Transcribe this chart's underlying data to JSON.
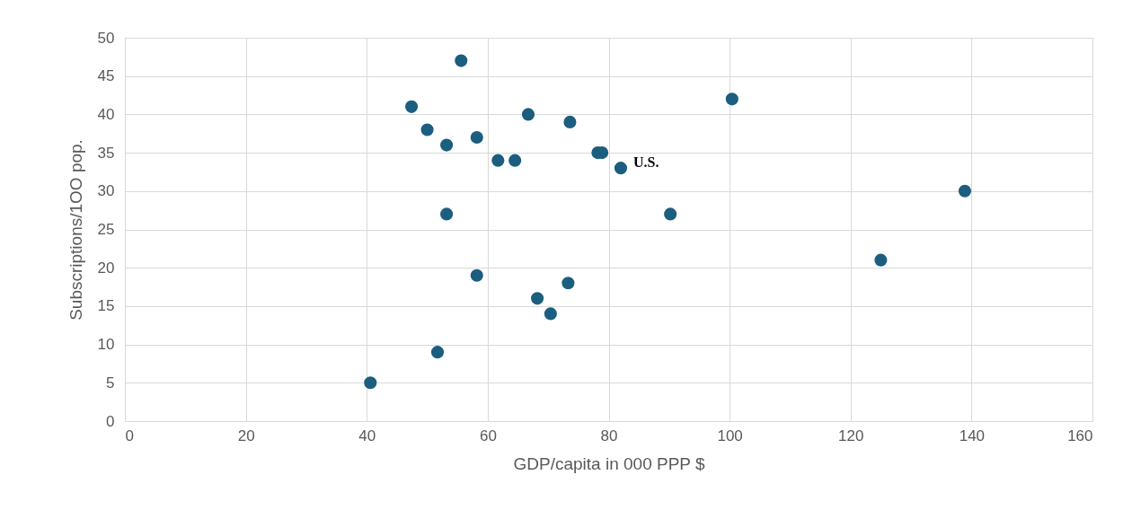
{
  "chart_data": {
    "type": "scatter",
    "xlabel": "GDP/capita in 000 PPP $",
    "ylabel": "Subscriptions/1OO pop.",
    "x": [
      40.6,
      51.7,
      53.2,
      58.2,
      68.2,
      70.4,
      73.3,
      55.6,
      47.4,
      50.0,
      53.2,
      58.2,
      61.7,
      64.5,
      66.7,
      73.6,
      78.2,
      78.9,
      82.0,
      90.2,
      100.4,
      125,
      138.9
    ],
    "values": [
      5,
      9,
      27,
      19,
      16,
      14,
      18,
      47,
      41,
      38,
      36,
      37,
      34,
      34,
      40,
      39,
      35,
      35,
      33,
      27,
      42,
      21,
      30
    ],
    "color": "#1b5e7f",
    "marker": "circle",
    "xlim": [
      0,
      160
    ],
    "xticks": [
      0,
      20,
      40,
      60,
      80,
      100,
      120,
      140,
      160
    ],
    "ylim": [
      0,
      50
    ],
    "yticks": [
      0,
      5,
      10,
      15,
      20,
      25,
      30,
      35,
      40,
      45,
      50
    ],
    "grid": true,
    "annotations": [
      {
        "text": "U.S.",
        "x": 82.0,
        "y": 33
      }
    ]
  }
}
